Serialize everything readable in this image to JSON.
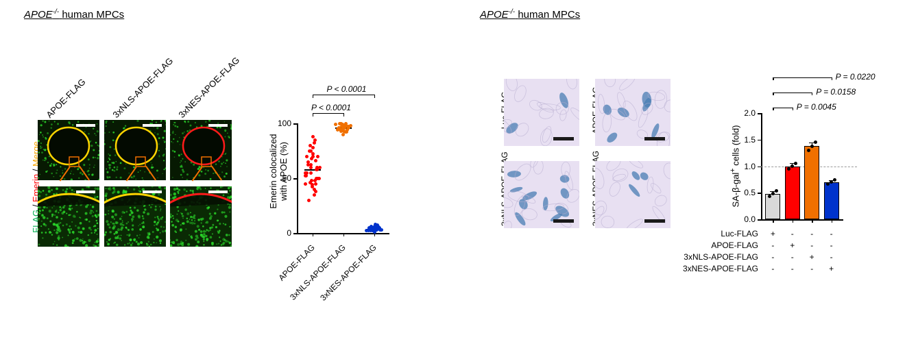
{
  "leftPanel": {
    "title_html": "APOE<sup>-/-</sup> human MPCs",
    "title": "APOE-/- human MPCs",
    "yAxisLabels": {
      "flag": "FLAG",
      "emerin": "Emerin",
      "merge": "Merge"
    },
    "yAxisColors": {
      "flag": "#00b050",
      "emerin": "#ff0000",
      "merge": "#f6a600"
    },
    "columns": [
      "APOE-FLAG",
      "3xNLS-APOE-FLAG",
      "3xNES-APOE-FLAG"
    ],
    "scatter": {
      "yLabel": "Emerin colocalized with APOE (%)",
      "categories": [
        "APOE-FLAG",
        "3xNLS-APOE-FLAG",
        "3xNES-APOE-FLAG"
      ],
      "ylim": [
        0,
        100
      ],
      "ytick_step": 50,
      "colors": [
        "#ff0000",
        "#f07000",
        "#0033cc"
      ],
      "pvals": [
        {
          "label": "P < 0.0001",
          "pair": [
            0,
            1
          ]
        },
        {
          "label": "P < 0.0001",
          "pair": [
            0,
            2
          ]
        }
      ],
      "series": [
        [
          30,
          35,
          38,
          40,
          42,
          45,
          46,
          48,
          50,
          50,
          52,
          55,
          55,
          58,
          60,
          60,
          62,
          65,
          68,
          70,
          70,
          72,
          75,
          75,
          78,
          80,
          82,
          85,
          88,
          48,
          55,
          62,
          45,
          58,
          66,
          52,
          70,
          44,
          60,
          50
        ],
        [
          90,
          92,
          93,
          94,
          95,
          95,
          96,
          97,
          98,
          98,
          99,
          100,
          100,
          97,
          96,
          95,
          94,
          93,
          92,
          98,
          99,
          95,
          96,
          97,
          94,
          93,
          98,
          99,
          100,
          95
        ],
        [
          1,
          2,
          2,
          3,
          3,
          3,
          4,
          4,
          5,
          5,
          5,
          6,
          6,
          7,
          8,
          2,
          3,
          4,
          5,
          3,
          4,
          2,
          6,
          5,
          3,
          4,
          5,
          3,
          2,
          4
        ]
      ]
    }
  },
  "rightPanel": {
    "title_html": "APOE<sup>-/-</sup> human MPCs",
    "title": "APOE-/- human MPCs",
    "imageLabels": [
      "Luc-FLAG",
      "APOE-FLAG",
      "3xNLS-APOE-FLAG",
      "3xNES-APOE-FLAG"
    ],
    "barChart": {
      "yLabel": "SA-β-gal+ cells (fold)",
      "yLabel_sup": "+",
      "ylim": [
        0,
        2.0
      ],
      "ytick_step": 0.5,
      "dashed_at": 1.0,
      "bars": [
        {
          "value": 0.48,
          "sd": 0.05,
          "color": "#d9d9d9",
          "points": [
            0.43,
            0.48,
            0.53
          ]
        },
        {
          "value": 1.0,
          "sd": 0.06,
          "color": "#ff0000",
          "points": [
            0.95,
            1.0,
            1.05
          ]
        },
        {
          "value": 1.38,
          "sd": 0.07,
          "color": "#f07000",
          "points": [
            1.3,
            1.38,
            1.45
          ]
        },
        {
          "value": 0.7,
          "sd": 0.04,
          "color": "#0033cc",
          "points": [
            0.66,
            0.7,
            0.74
          ]
        }
      ],
      "pvals": [
        {
          "label": "P = 0.0045",
          "pair": [
            0,
            1
          ]
        },
        {
          "label": "P = 0.0158",
          "pair": [
            0,
            2
          ]
        },
        {
          "label": "P = 0.0220",
          "pair": [
            0,
            3
          ]
        }
      ],
      "treatments": [
        {
          "name": "Luc-FLAG",
          "pattern": [
            "+",
            "-",
            "-",
            "-"
          ]
        },
        {
          "name": "APOE-FLAG",
          "pattern": [
            "-",
            "+",
            "-",
            "-"
          ]
        },
        {
          "name": "3xNLS-APOE-FLAG",
          "pattern": [
            "-",
            "-",
            "+",
            "-"
          ]
        },
        {
          "name": "3xNES-APOE-FLAG",
          "pattern": [
            "-",
            "-",
            "-",
            "+"
          ]
        }
      ]
    }
  },
  "colors": {
    "background": "#ffffff",
    "axis": "#000000",
    "green_fluor": "#2bdc2b",
    "red_fluor": "#ff1a1a",
    "yellow_merge": "#ffd400",
    "cell_bg": "#e4ddf0",
    "cell_blue": "#5b8fc9"
  },
  "typography": {
    "title_fontsize": 15,
    "label_fontsize": 13,
    "tick_fontsize": 12
  },
  "layout": {
    "figure_width": 1339,
    "figure_height": 502
  }
}
